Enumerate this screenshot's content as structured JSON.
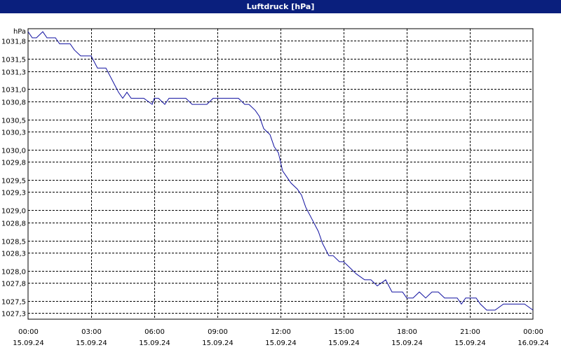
{
  "title": "Luftdruck [hPa]",
  "colors": {
    "titlebar": "#0a1f7d",
    "line": "#1010a0",
    "grid": "#000000"
  },
  "chart_data": {
    "type": "line",
    "title": "Luftdruck [hPa]",
    "ylabel": "hPa",
    "xlabel": "",
    "ylim": [
      1027.3,
      1032.0
    ],
    "xlim": [
      0,
      24
    ],
    "grid": true,
    "legend": "none",
    "yticks": [
      {
        "value": 1031.8,
        "label": "1031,8"
      },
      {
        "value": 1031.5,
        "label": "1031,5"
      },
      {
        "value": 1031.3,
        "label": "1031,3"
      },
      {
        "value": 1031.0,
        "label": "1031,0"
      },
      {
        "value": 1030.8,
        "label": "1030,8"
      },
      {
        "value": 1030.5,
        "label": "1030,5"
      },
      {
        "value": 1030.3,
        "label": "1030,3"
      },
      {
        "value": 1030.0,
        "label": "1030,0"
      },
      {
        "value": 1029.8,
        "label": "1029,8"
      },
      {
        "value": 1029.5,
        "label": "1029,5"
      },
      {
        "value": 1029.3,
        "label": "1029,3"
      },
      {
        "value": 1029.0,
        "label": "1029,0"
      },
      {
        "value": 1028.8,
        "label": "1028,8"
      },
      {
        "value": 1028.5,
        "label": "1028,5"
      },
      {
        "value": 1028.3,
        "label": "1028,3"
      },
      {
        "value": 1028.0,
        "label": "1028,0"
      },
      {
        "value": 1027.8,
        "label": "1027,8"
      },
      {
        "value": 1027.5,
        "label": "1027,5"
      },
      {
        "value": 1027.3,
        "label": "1027,3"
      }
    ],
    "xticks": [
      {
        "value": 0,
        "time": "00:00",
        "date": "15.09.24"
      },
      {
        "value": 3,
        "time": "03:00",
        "date": "15.09.24"
      },
      {
        "value": 6,
        "time": "06:00",
        "date": "15.09.24"
      },
      {
        "value": 9,
        "time": "09:00",
        "date": "15.09.24"
      },
      {
        "value": 12,
        "time": "12:00",
        "date": "15.09.24"
      },
      {
        "value": 15,
        "time": "15:00",
        "date": "15.09.24"
      },
      {
        "value": 18,
        "time": "18:00",
        "date": "15.09.24"
      },
      {
        "value": 21,
        "time": "21:00",
        "date": "15.09.24"
      },
      {
        "value": 24,
        "time": "00:00",
        "date": "16.09.24"
      }
    ],
    "series": [
      {
        "x": [
          0,
          0.2,
          0.4,
          0.7,
          0.9,
          1.3,
          1.5,
          2.0,
          2.2,
          2.5,
          3.0,
          3.3,
          3.7,
          4.0,
          4.3,
          4.5,
          4.7,
          4.9,
          5.2,
          5.5,
          5.9,
          6.0,
          6.2,
          6.5,
          6.7,
          7.0,
          7.5,
          7.8,
          8.5,
          8.8,
          9.5,
          10.0,
          10.3,
          10.5,
          10.8,
          11.0,
          11.2,
          11.5,
          11.7,
          11.9,
          12.1,
          12.3,
          12.5,
          12.8,
          13.0,
          13.2,
          13.5,
          13.8,
          14.0,
          14.3,
          14.5,
          14.8,
          15.0,
          15.3,
          15.6,
          16.0,
          16.3,
          16.6,
          17.0,
          17.3,
          17.5,
          17.8,
          18.0,
          18.3,
          18.6,
          18.9,
          19.2,
          19.5,
          19.8,
          20.1,
          20.4,
          20.6,
          20.8,
          21.0,
          21.3,
          21.5,
          21.8,
          22.2,
          22.6,
          22.9,
          23.2,
          23.6,
          24.0
        ],
        "y": [
          1031.95,
          1031.85,
          1031.85,
          1031.95,
          1031.85,
          1031.85,
          1031.75,
          1031.75,
          1031.65,
          1031.55,
          1031.55,
          1031.35,
          1031.35,
          1031.15,
          1030.95,
          1030.85,
          1030.95,
          1030.85,
          1030.85,
          1030.85,
          1030.75,
          1030.85,
          1030.85,
          1030.75,
          1030.85,
          1030.85,
          1030.85,
          1030.75,
          1030.75,
          1030.85,
          1030.85,
          1030.85,
          1030.75,
          1030.75,
          1030.65,
          1030.55,
          1030.35,
          1030.25,
          1030.05,
          1029.95,
          1029.65,
          1029.55,
          1029.45,
          1029.35,
          1029.25,
          1029.05,
          1028.85,
          1028.65,
          1028.45,
          1028.25,
          1028.25,
          1028.15,
          1028.15,
          1028.05,
          1027.95,
          1027.85,
          1027.85,
          1027.75,
          1027.85,
          1027.65,
          1027.65,
          1027.65,
          1027.55,
          1027.55,
          1027.65,
          1027.55,
          1027.65,
          1027.65,
          1027.55,
          1027.55,
          1027.55,
          1027.45,
          1027.55,
          1027.55,
          1027.55,
          1027.45,
          1027.35,
          1027.35,
          1027.45,
          1027.45,
          1027.45,
          1027.45,
          1027.35
        ]
      }
    ]
  }
}
